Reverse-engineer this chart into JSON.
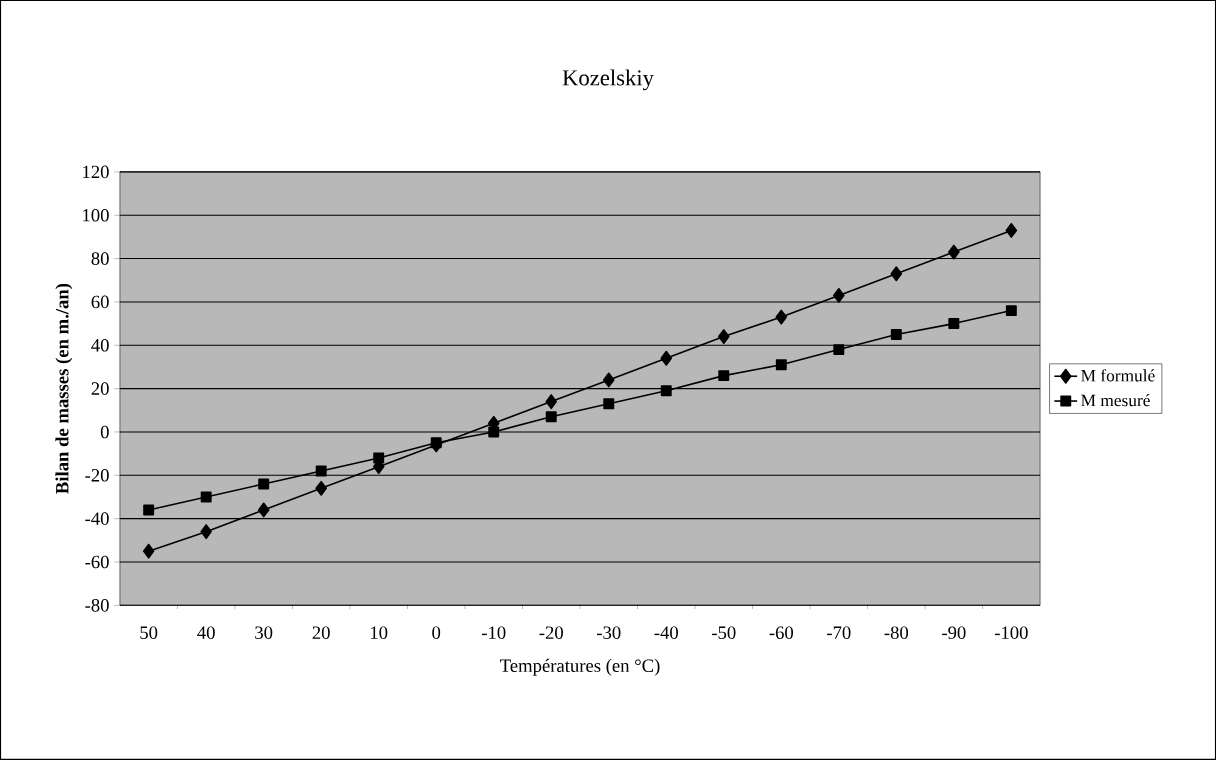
{
  "chart_data": {
    "type": "line",
    "title": "Kozelskiy",
    "xlabel": "Températures (en °C)",
    "ylabel": "Bilan de masses (en m./an)",
    "categories": [
      "50",
      "40",
      "30",
      "20",
      "10",
      "0",
      "-10",
      "-20",
      "-30",
      "-40",
      "-50",
      "-60",
      "-70",
      "-80",
      "-90",
      "-100"
    ],
    "series": [
      {
        "name": "M formulé",
        "color": "#000000",
        "marker": "diamond",
        "values": [
          -55,
          -46,
          -36,
          -26,
          -16,
          -6,
          4,
          14,
          24,
          34,
          44,
          53,
          63,
          73,
          83,
          93
        ]
      },
      {
        "name": "M mesuré",
        "color": "#000000",
        "marker": "square",
        "values": [
          -36,
          -30,
          -24,
          -18,
          -12,
          -5,
          0,
          7,
          13,
          19,
          26,
          31,
          38,
          45,
          50,
          56
        ]
      }
    ],
    "ylim": [
      -80,
      120
    ],
    "yticks": [
      -80,
      -60,
      -40,
      -20,
      0,
      20,
      40,
      60,
      80,
      100,
      120
    ],
    "grid": "y",
    "legend": "right",
    "line_style": "solid"
  }
}
